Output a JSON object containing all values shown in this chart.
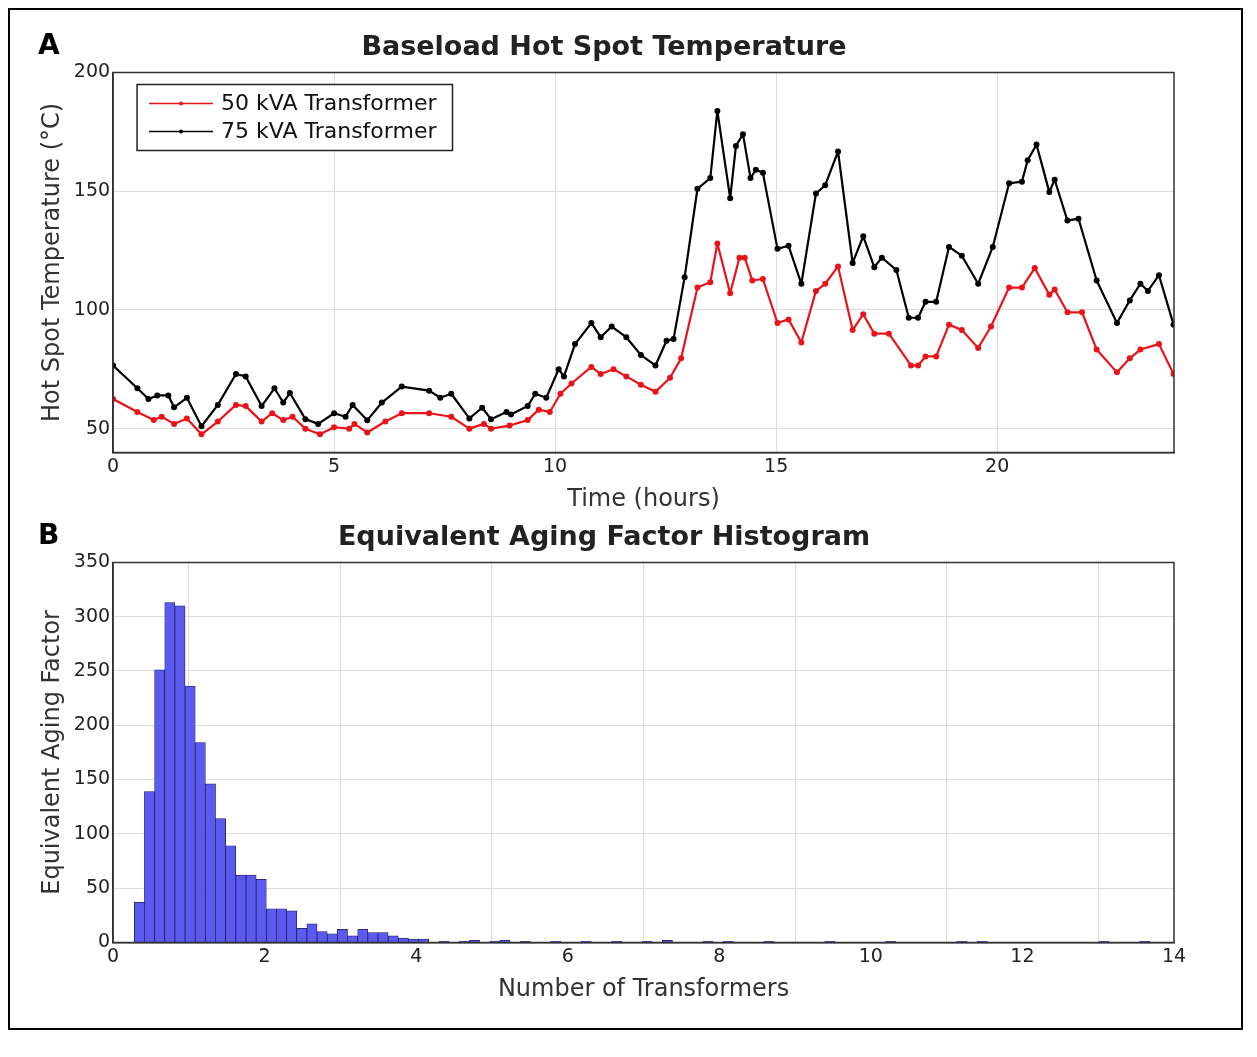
{
  "chart_data": [
    {
      "type": "line",
      "title": "Baseload Hot Spot Temperature",
      "xlabel": "Time (hours)",
      "ylabel": "Hot Spot Temperature (°C)",
      "annotations": [
        "A"
      ],
      "xlim": [
        0,
        24
      ],
      "xticks": [
        0,
        5,
        10,
        15,
        20
      ],
      "ylim": [
        40,
        200
      ],
      "yticks": [
        50,
        100,
        150,
        200
      ],
      "grid": true,
      "legend": "top left",
      "marker": "circle",
      "line_style": "solid",
      "series": [
        {
          "name": "50 kVA Transformer",
          "color": "#e8141a",
          "x": [
            0,
            0.55,
            0.92,
            1.1,
            1.38,
            1.67,
            2.0,
            2.37,
            2.78,
            3.0,
            3.36,
            3.6,
            3.85,
            4.06,
            4.35,
            4.68,
            5.0,
            5.34,
            5.46,
            5.75,
            6.16,
            6.53,
            7.15,
            7.65,
            8.06,
            8.39,
            8.55,
            8.97,
            9.38,
            9.63,
            9.88,
            10.12,
            10.37,
            10.82,
            11.03,
            11.32,
            11.61,
            11.94,
            12.27,
            12.6,
            12.85,
            13.22,
            13.51,
            13.67,
            13.96,
            14.17,
            14.29,
            14.46,
            14.7,
            15.03,
            15.28,
            15.57,
            15.9,
            16.11,
            16.4,
            16.73,
            16.97,
            17.22,
            17.55,
            18.05,
            18.21,
            18.38,
            18.62,
            18.91,
            19.2,
            19.57,
            19.86,
            20.27,
            20.56,
            20.85,
            21.18,
            21.3,
            21.59,
            21.92,
            22.25,
            22.71,
            23.0,
            23.24,
            23.66,
            23.99
          ],
          "values": [
            62.5,
            57,
            53.6,
            55,
            52,
            54.3,
            47.6,
            53,
            60,
            59.5,
            53,
            56.5,
            53.6,
            55,
            50,
            47.6,
            50.6,
            50,
            52,
            48.4,
            53,
            56.5,
            56.5,
            55,
            50,
            52,
            50,
            51.3,
            53.6,
            58,
            57,
            64.7,
            69,
            76,
            73,
            75,
            72,
            68.5,
            65.5,
            71.4,
            79.6,
            109.4,
            111.6,
            128,
            107,
            122,
            122,
            112.4,
            113,
            94.5,
            96,
            86.3,
            108,
            111,
            118.3,
            91.5,
            98.2,
            90,
            90,
            76.6,
            76.6,
            80.4,
            80.4,
            93.8,
            91.5,
            84,
            93,
            109.4,
            109.4,
            117.6,
            106.4,
            108.6,
            99,
            99,
            83.3,
            73.7,
            79.6,
            83.3,
            85.6,
            73
          ]
        },
        {
          "name": "75 kVA Transformer",
          "color": "#000000",
          "x": [
            0,
            0.55,
            0.8,
            1.0,
            1.25,
            1.38,
            1.67,
            2.0,
            2.37,
            2.78,
            3.0,
            3.36,
            3.65,
            3.85,
            4.0,
            4.35,
            4.64,
            5.0,
            5.26,
            5.42,
            5.75,
            6.08,
            6.53,
            7.15,
            7.4,
            7.65,
            8.06,
            8.35,
            8.55,
            8.9,
            9.0,
            9.38,
            9.55,
            9.8,
            10.08,
            10.2,
            10.45,
            10.82,
            11.03,
            11.28,
            11.61,
            11.94,
            12.27,
            12.52,
            12.68,
            12.93,
            13.22,
            13.51,
            13.67,
            13.96,
            14.09,
            14.25,
            14.42,
            14.54,
            14.7,
            15.03,
            15.28,
            15.57,
            15.9,
            16.11,
            16.4,
            16.73,
            16.97,
            17.22,
            17.39,
            17.72,
            18.0,
            18.21,
            18.38,
            18.62,
            18.91,
            19.2,
            19.57,
            19.9,
            20.27,
            20.56,
            20.69,
            20.89,
            21.18,
            21.3,
            21.59,
            21.84,
            22.25,
            22.71,
            23.0,
            23.24,
            23.41,
            23.66,
            23.99
          ],
          "values": [
            76.6,
            67,
            62.5,
            64,
            64,
            59,
            63,
            51,
            60,
            73,
            72,
            59.5,
            67,
            61,
            65,
            54,
            52,
            56.5,
            55,
            60,
            53.5,
            61,
            67.7,
            66,
            63,
            64.7,
            54.3,
            58.8,
            54,
            57,
            56,
            59.5,
            64.7,
            63,
            75,
            72,
            85.6,
            94.5,
            88.5,
            93,
            88.5,
            81,
            76.6,
            87,
            87.8,
            113.8,
            151,
            155.5,
            183.8,
            147,
            169,
            174,
            155.5,
            159,
            157.7,
            125.7,
            127,
            111,
            149,
            152.5,
            166.7,
            119.8,
            131,
            118,
            122,
            116.8,
            96.7,
            96.7,
            103.4,
            103.4,
            126.5,
            122.8,
            111,
            126.5,
            153.3,
            154,
            163,
            169.6,
            149.6,
            154.8,
            137.6,
            138.4,
            112.4,
            94.5,
            104,
            111,
            108,
            114.6,
            93.8
          ]
        }
      ]
    },
    {
      "type": "histogram",
      "title": "Equivalent Aging Factor Histogram",
      "xlabel": "Number of Transformers",
      "ylabel": "Equivalent Aging Factor",
      "annotations": [
        "B"
      ],
      "xlim": [
        0,
        14
      ],
      "xticks": [
        0,
        2,
        4,
        6,
        8,
        10,
        12,
        14
      ],
      "ylim": [
        0,
        350
      ],
      "yticks": [
        0,
        50,
        100,
        150,
        200,
        250,
        300,
        350
      ],
      "grid": true,
      "color": "#5a5af0",
      "bins": [
        0.28,
        0.414,
        0.548,
        0.682,
        0.816,
        0.95,
        1.084,
        1.218,
        1.352,
        1.486,
        1.62,
        1.754,
        1.888,
        2.022,
        2.156,
        2.29,
        2.424,
        2.558,
        2.692,
        2.826,
        2.96,
        3.094,
        3.228,
        3.362,
        3.496,
        3.63,
        3.764,
        3.898,
        4.032,
        4.166,
        4.3,
        4.434,
        4.568,
        4.702,
        4.836,
        4.97,
        5.104,
        5.238,
        5.372,
        5.506,
        5.64,
        5.774,
        5.908,
        6.042,
        6.176,
        6.31,
        6.444,
        6.578,
        6.712,
        6.846,
        6.98,
        7.114,
        7.248,
        7.382,
        7.516,
        7.65,
        7.784,
        7.918,
        8.052,
        8.186,
        8.32,
        8.454,
        8.588,
        8.722,
        8.856,
        8.99,
        9.124,
        9.258,
        9.392,
        9.526,
        9.66,
        9.794,
        9.928,
        10.062,
        10.196,
        10.33,
        10.464,
        10.598,
        10.732,
        10.866,
        11.0,
        11.134,
        11.268,
        11.402,
        11.536,
        11.67,
        11.804,
        11.938,
        12.072,
        12.206,
        12.34,
        12.474,
        12.608,
        12.742,
        12.876,
        13.01,
        13.144,
        13.278,
        13.412,
        13.546,
        13.68
      ],
      "values": [
        37,
        139,
        251,
        313,
        310,
        236,
        184,
        146,
        114,
        89,
        62,
        62,
        58,
        31,
        31,
        29,
        13,
        17,
        10,
        8,
        12,
        6,
        12,
        9,
        9,
        6,
        4,
        3,
        3,
        0,
        1,
        0,
        1,
        2,
        0,
        1,
        2,
        0,
        1,
        0,
        0,
        1,
        0,
        0,
        1,
        0,
        0,
        1,
        0,
        0,
        1,
        0,
        2,
        0,
        0,
        0,
        1,
        0,
        1,
        0,
        0,
        0,
        1,
        0,
        0,
        0,
        0,
        0,
        1,
        0,
        0,
        0,
        0,
        0,
        1,
        0,
        0,
        0,
        0,
        0,
        0,
        1,
        0,
        1,
        0,
        0,
        0,
        0,
        0,
        0,
        0,
        0,
        0,
        0,
        0,
        1,
        0,
        0,
        0,
        1
      ]
    }
  ]
}
